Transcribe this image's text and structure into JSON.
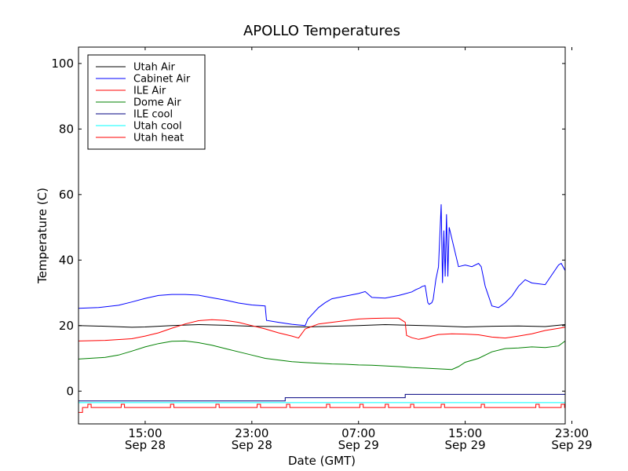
{
  "chart_data": {
    "type": "line",
    "title": "APOLLO Temperatures",
    "xlabel": "Date (GMT)",
    "ylabel": "Temperature (C)",
    "ylim": [
      -10,
      105
    ],
    "xlim_hours": [
      10.0,
      46.5
    ],
    "x_unit_note": "hours since Sep 28 00:00 GMT",
    "yticks": [
      0,
      20,
      40,
      60,
      80,
      100
    ],
    "xticks": [
      {
        "x": 15,
        "label1": "15:00",
        "label2": "Sep 28"
      },
      {
        "x": 23,
        "label1": "23:00",
        "label2": "Sep 28"
      },
      {
        "x": 31,
        "label1": "07:00",
        "label2": "Sep 29"
      },
      {
        "x": 39,
        "label1": "15:00",
        "label2": "Sep 29"
      },
      {
        "x": 47,
        "label1": "23:00",
        "label2": "Sep 29"
      }
    ],
    "legend_position": "top-left",
    "series": [
      {
        "name": "Utah Air",
        "color": "#000000",
        "x": [
          10,
          12,
          14,
          15,
          17,
          19,
          21,
          23,
          25,
          27,
          29,
          31,
          33,
          35,
          37,
          39,
          41,
          43,
          45,
          46.5
        ],
        "y": [
          20,
          19.8,
          19.5,
          19.6,
          20,
          20.3,
          20.1,
          19.8,
          19.7,
          19.6,
          19.8,
          20,
          20.3,
          20.1,
          19.9,
          19.6,
          19.8,
          19.9,
          19.7,
          20.3
        ]
      },
      {
        "name": "Cabinet Air",
        "color": "#0000ff",
        "x": [
          10,
          11.5,
          13,
          14,
          15,
          16,
          17,
          18,
          19,
          20,
          21,
          22,
          23,
          24,
          24.1,
          25,
          26,
          27,
          27.2,
          28,
          28.5,
          29,
          30,
          31,
          31.5,
          32,
          33,
          34,
          34.3,
          35,
          35.3,
          35.6,
          35.8,
          36,
          36.2,
          36.3,
          36.5,
          36.6,
          36.8,
          37,
          37.2,
          37.3,
          37.4,
          37.5,
          37.6,
          37.7,
          37.8,
          38.5,
          39,
          39.5,
          40,
          40.2,
          40.5,
          41,
          41.5,
          42,
          42.5,
          43,
          43.5,
          44,
          45,
          46,
          46.2,
          46.5
        ],
        "y": [
          25.3,
          25.5,
          26.2,
          27.2,
          28.3,
          29.2,
          29.5,
          29.5,
          29.3,
          28.5,
          27.8,
          26.9,
          26.3,
          26,
          21.6,
          21,
          20.4,
          20,
          22,
          25.5,
          27,
          28.2,
          29,
          29.8,
          30.4,
          28.6,
          28.4,
          29.2,
          29.5,
          30.3,
          31,
          31.5,
          32,
          32.2,
          27,
          26.5,
          27,
          28,
          34,
          38,
          57,
          33,
          49,
          35,
          54,
          35,
          50,
          38,
          38.5,
          38,
          39,
          38,
          32,
          26,
          25.5,
          27,
          29,
          32,
          34,
          33,
          32.5,
          38.5,
          39,
          36.8
        ]
      },
      {
        "name": "ILE Air",
        "color": "#ff0000",
        "x": [
          10,
          12,
          14,
          15,
          16,
          17,
          18,
          19,
          20,
          21,
          22,
          23,
          24,
          25,
          26,
          26.5,
          27,
          28,
          29,
          30,
          31,
          32,
          33,
          34,
          34.5,
          34.6,
          35,
          35.5,
          36,
          36.5,
          37,
          38,
          39,
          40,
          41,
          42,
          43,
          44,
          45,
          46.5
        ],
        "y": [
          15.3,
          15.5,
          16,
          16.8,
          17.8,
          19.2,
          20.5,
          21.5,
          21.8,
          21.6,
          21,
          20,
          19,
          17.8,
          16.8,
          16.2,
          19,
          20.5,
          21,
          21.5,
          22,
          22.2,
          22.3,
          22.3,
          21,
          17,
          16.3,
          15.8,
          16.2,
          16.8,
          17.3,
          17.5,
          17.4,
          17.2,
          16.5,
          16.2,
          16.8,
          17.5,
          18.5,
          19.5
        ]
      },
      {
        "name": "Dome Air",
        "color": "#008000",
        "x": [
          10,
          12,
          13,
          14,
          15,
          16,
          17,
          18,
          19,
          20,
          21,
          22,
          23,
          24,
          25,
          26,
          27,
          28,
          29,
          30,
          31,
          32,
          33,
          34,
          35,
          36,
          37,
          38,
          38.5,
          39,
          40,
          41,
          42,
          43,
          44,
          45,
          46,
          46.5
        ],
        "y": [
          9.8,
          10.3,
          11,
          12.2,
          13.5,
          14.5,
          15.2,
          15.3,
          14.8,
          14,
          13,
          12,
          11,
          10,
          9.5,
          9,
          8.7,
          8.5,
          8.3,
          8.2,
          8,
          7.9,
          7.7,
          7.5,
          7.2,
          7,
          6.8,
          6.6,
          7.5,
          8.8,
          10,
          12,
          13,
          13.2,
          13.5,
          13.3,
          13.8,
          15.3
        ]
      },
      {
        "name": "ILE cool",
        "color": "#000080",
        "x": [
          10,
          25.5,
          25.5,
          34.5,
          34.5,
          46.5
        ],
        "y": [
          -3,
          -3,
          -2,
          -2,
          -1,
          -1
        ]
      },
      {
        "name": "Utah cool",
        "color": "#00ffff",
        "x": [
          10,
          46.5
        ],
        "y": [
          -3.5,
          -3.5
        ]
      },
      {
        "name": "Utah heat",
        "color": "#ff0000",
        "baseline": -5,
        "pulse_high": -4,
        "pulse_x": [
          10.7,
          13.2,
          16.9,
          20.3,
          23.4,
          25.6,
          28.6,
          31.1,
          33.0,
          34.9,
          37.2,
          40.2,
          44.3,
          46.2
        ],
        "start_low": -6.5
      }
    ]
  }
}
